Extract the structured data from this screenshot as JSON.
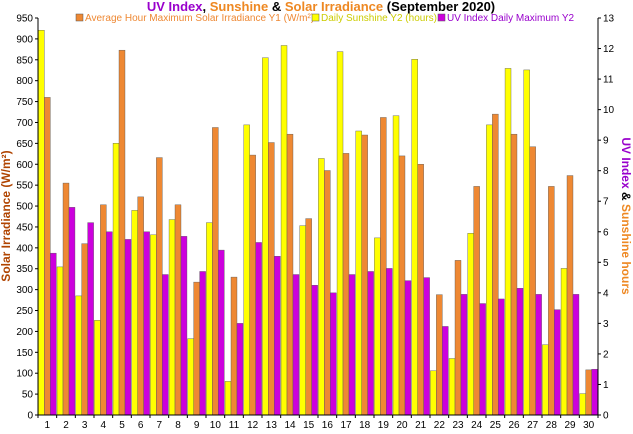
{
  "chart_data": {
    "type": "bar",
    "title_parts": [
      {
        "text": "UV Index",
        "color": "#9900cc"
      },
      {
        "text": ", ",
        "color": "#000000"
      },
      {
        "text": "Sunshine",
        "color": "#ee8822"
      },
      {
        "text": " & ",
        "color": "#000000"
      },
      {
        "text": "Solar Irradiance",
        "color": "#ee8822"
      },
      {
        "text": "  (September 2020)",
        "color": "#000000"
      }
    ],
    "ylabel_left": "Solar Irradiance (W/m²)",
    "ylabel_right_parts": [
      {
        "text": "UV Index",
        "color": "#9900cc"
      },
      {
        "text": " & ",
        "color": "#000000"
      },
      {
        "text": "Sunshine hours",
        "color": "#ee8822"
      }
    ],
    "categories": [
      "1",
      "2",
      "3",
      "4",
      "5",
      "6",
      "7",
      "8",
      "9",
      "10",
      "11",
      "12",
      "13",
      "14",
      "15",
      "16",
      "17",
      "18",
      "19",
      "20",
      "21",
      "22",
      "23",
      "24",
      "25",
      "26",
      "27",
      "28",
      "29",
      "30"
    ],
    "ylim_left": [
      0,
      950
    ],
    "yticks_left": [
      0,
      50,
      100,
      150,
      200,
      250,
      300,
      350,
      400,
      450,
      500,
      550,
      600,
      650,
      700,
      750,
      800,
      850,
      900,
      950
    ],
    "ylim_right": [
      0,
      13
    ],
    "yticks_right": [
      0,
      1,
      2,
      3,
      4,
      5,
      6,
      7,
      8,
      9,
      10,
      11,
      12,
      13
    ],
    "legend_position": "top",
    "grid": false,
    "series": [
      {
        "name": "Daily Sunshine Y2 (hours)",
        "axis": "right",
        "color": "#ffff00",
        "values": [
          12.6,
          4.85,
          3.9,
          3.1,
          8.9,
          6.7,
          5.9,
          6.4,
          2.5,
          6.3,
          1.1,
          9.5,
          11.7,
          12.1,
          6.2,
          8.4,
          11.9,
          9.3,
          5.8,
          9.8,
          11.65,
          1.45,
          1.85,
          5.95,
          9.5,
          11.35,
          11.3,
          2.3,
          4.8,
          0.7
        ]
      },
      {
        "name": "Average Hour Maximum Solar Irradiance Y1 (W/m²)",
        "axis": "left",
        "color": "#ee8833",
        "values": [
          760,
          555,
          410,
          503,
          873,
          522,
          616,
          503,
          318,
          688,
          330,
          622,
          652,
          672,
          470,
          585,
          626,
          670,
          712,
          620,
          600,
          288,
          370,
          547,
          720,
          672,
          642,
          547,
          573,
          108
        ]
      },
      {
        "name": "UV Index Daily Maximum Y2",
        "axis": "right",
        "color": "#cc00dd",
        "values": [
          5.3,
          6.8,
          6.3,
          6.0,
          5.75,
          6.0,
          4.6,
          5.85,
          4.7,
          5.4,
          3.0,
          5.65,
          5.2,
          4.6,
          4.25,
          4.0,
          4.6,
          4.7,
          4.8,
          4.4,
          4.5,
          2.9,
          3.95,
          3.65,
          3.8,
          4.15,
          3.95,
          3.45,
          3.95,
          1.5
        ]
      }
    ]
  }
}
